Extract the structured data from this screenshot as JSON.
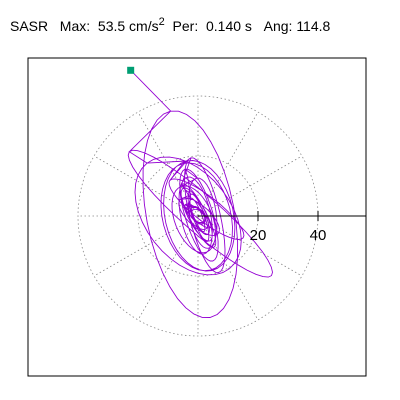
{
  "header": {
    "label": "SASR",
    "max_label": "Max:",
    "max_value": "53.5 cm/s",
    "max_exp": "2",
    "per_label": "Per:",
    "per_value": "0.140 s",
    "ang_label": "Ang:",
    "ang_value": "114.8"
  },
  "colors": {
    "trace": "#9400d3",
    "marker": "#009e73",
    "grid": "#888888",
    "frame": "#000000"
  },
  "chart_data": {
    "type": "polar",
    "radial_ticks": [
      {
        "value": 20,
        "label": "20"
      },
      {
        "value": 40,
        "label": "40"
      }
    ],
    "rmax": 53.5,
    "grid_circle_radii": [
      20,
      40
    ],
    "spoke_angles_deg": [
      0,
      30,
      60,
      90,
      120,
      150,
      180,
      210,
      240,
      270,
      300,
      330
    ],
    "peak_point": {
      "r": 53.5,
      "angle_deg": 114.8
    },
    "trace_note": "orbital particle-motion trace, estimated"
  }
}
